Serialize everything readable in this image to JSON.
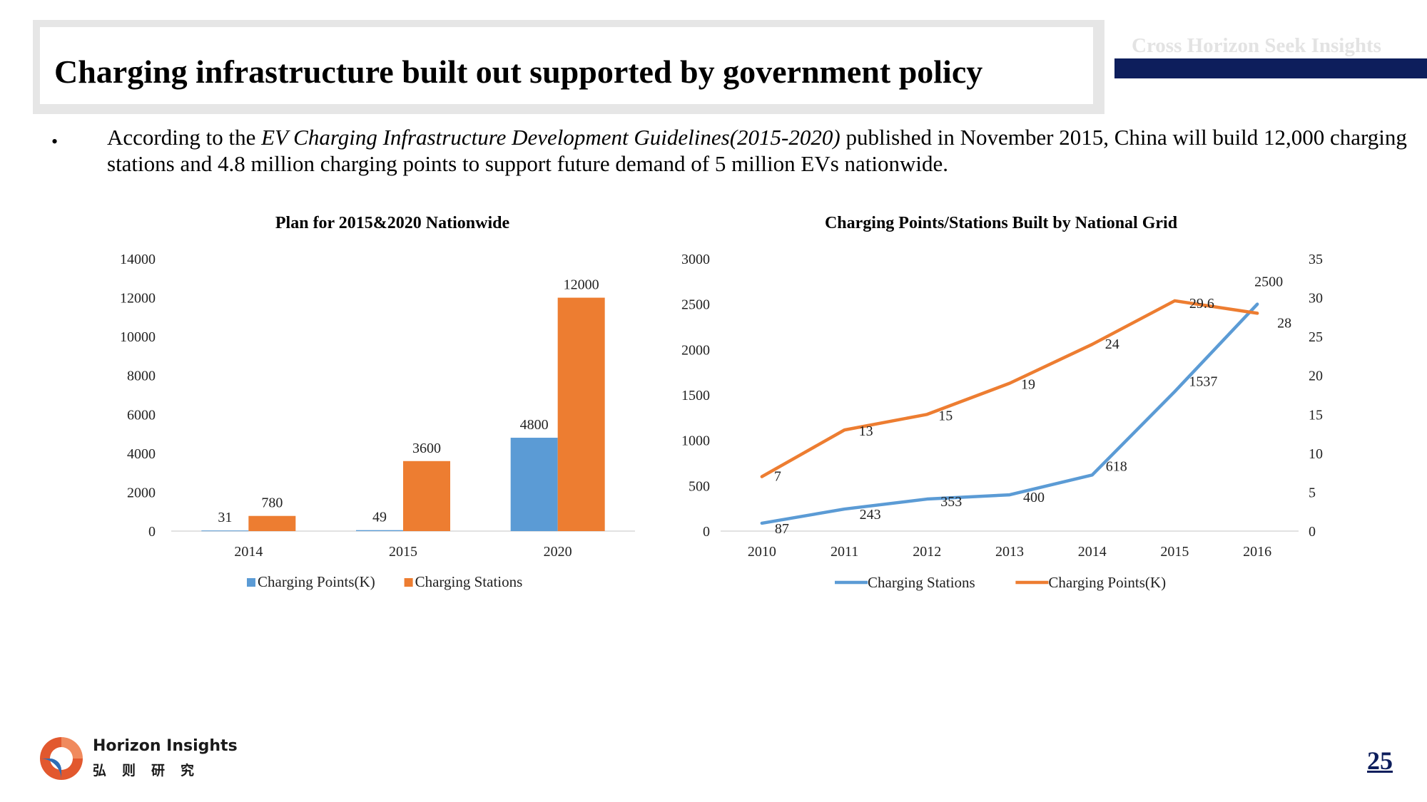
{
  "slide": {
    "title": "Charging infrastructure built out supported by government policy",
    "tagline": "Cross Horizon  Seek Insights",
    "bullet_marker": "•",
    "bullet_pre": "According to the ",
    "bullet_italic": "EV Charging Infrastructure Development Guidelines(2015-2020)",
    "bullet_post": " published in November 2015, China will build 12,000 charging stations and 4.8 million charging points to support future demand of 5 million EVs nationwide.",
    "page_number": "25",
    "logo": {
      "name": "Horizon Insights",
      "chinese": "弘则研究"
    }
  },
  "colors": {
    "blue": "#5b9bd5",
    "orange": "#ed7d31",
    "navy": "#0d1e5c",
    "grid": "#d9d9d9"
  },
  "chart_data": [
    {
      "type": "bar",
      "title": "Plan for 2015&2020 Nationwide",
      "categories": [
        "2014",
        "2015",
        "2020"
      ],
      "series": [
        {
          "name": "Charging Points(K)",
          "values": [
            31,
            49,
            4800
          ]
        },
        {
          "name": "Charging Stations",
          "values": [
            780,
            3600,
            12000
          ]
        }
      ],
      "ylim": [
        0,
        14000
      ],
      "yticks": [
        "0",
        "2000",
        "4000",
        "6000",
        "8000",
        "10000",
        "12000",
        "14000"
      ],
      "legend": "bottom"
    },
    {
      "type": "line",
      "title": "Charging Points/Stations Built by National Grid",
      "x": [
        "2010",
        "2011",
        "2012",
        "2013",
        "2014",
        "2015",
        "2016"
      ],
      "series": [
        {
          "name": "Charging Stations",
          "axis": "left",
          "values": [
            87,
            243,
            353,
            400,
            618,
            1537,
            2500
          ]
        },
        {
          "name": "Charging Points(K)",
          "axis": "right",
          "values": [
            7,
            13,
            15,
            19,
            24,
            29.6,
            28
          ]
        }
      ],
      "ylim_left": [
        0,
        3000
      ],
      "yticks_left": [
        "0",
        "500",
        "1000",
        "1500",
        "2000",
        "2500",
        "3000"
      ],
      "ylim_right": [
        0,
        35
      ],
      "yticks_right": [
        "0",
        "5",
        "10",
        "15",
        "20",
        "25",
        "30",
        "35"
      ],
      "legend": "bottom"
    }
  ]
}
